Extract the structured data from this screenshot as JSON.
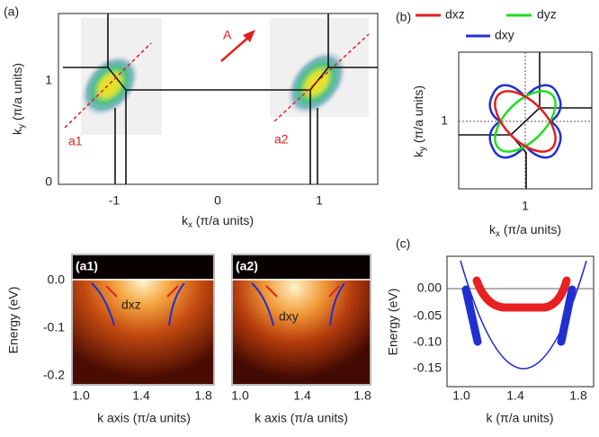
{
  "figure": {
    "panel_a": {
      "label": "(a)",
      "arrow_label": "A",
      "cut_labels": [
        "a1",
        "a2"
      ],
      "xticks": [
        "-1",
        "0",
        "1"
      ],
      "yticks": [
        "0",
        "1"
      ],
      "xlabel": {
        "k": "k",
        "sub": "x",
        "unit": " (π/a units)"
      },
      "ylabel": {
        "k": "k",
        "sub": "y",
        "unit": " (π/a units)"
      }
    },
    "panel_b": {
      "label": "(b)",
      "legend": [
        "dxz",
        "dyz",
        "dxy"
      ],
      "xticks": [
        "1"
      ],
      "yticks": [
        "1"
      ],
      "xlabel": {
        "k": "k",
        "sub": "x",
        "unit": " (π/a units)"
      },
      "ylabel": {
        "k": "k",
        "sub": "y",
        "unit": " (π/a units)"
      }
    },
    "panel_a1": {
      "label": "(a1)",
      "band_label": "dxz",
      "yticks": [
        "0.0",
        "-0.1",
        "-0.2"
      ],
      "xticks": [
        "1.0",
        "1.4",
        "1.8"
      ],
      "xlabel": "k axis (π/a units)",
      "ylabel": "Energy (eV)"
    },
    "panel_a2": {
      "label": "(a2)",
      "band_label": "dxy",
      "xticks": [
        "1.0",
        "1.4",
        "1.8"
      ],
      "xlabel": "k axis (π/a units)"
    },
    "panel_c": {
      "label": "(c)",
      "yticks": [
        "0.00",
        "-0.05",
        "-0.10",
        "-0.15"
      ],
      "xticks": [
        "1.0",
        "1.4",
        "1.8"
      ],
      "xlabel": "k (π/a units)",
      "ylabel": "Energy (eV)"
    }
  }
}
